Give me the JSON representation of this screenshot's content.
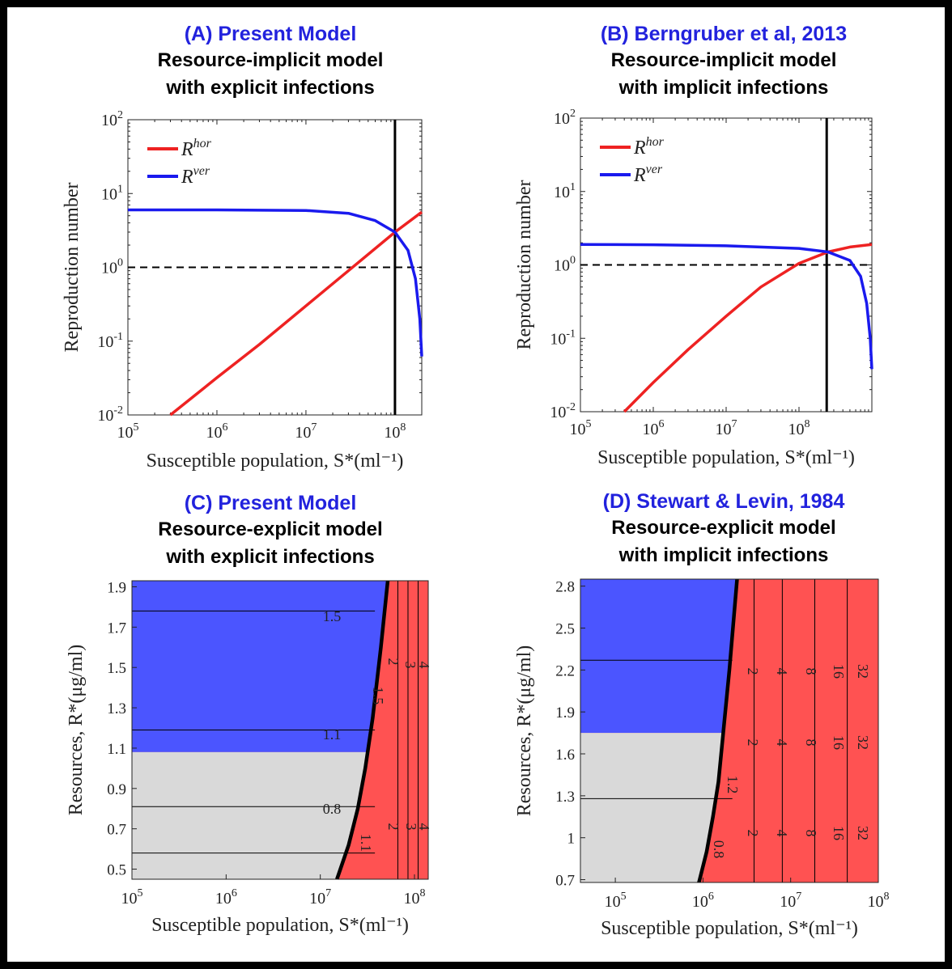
{
  "panels": {
    "A": {
      "title": "(A) Present Model",
      "line1": "Resource-implicit model",
      "line2": "with explicit infections"
    },
    "B": {
      "title": "(B) Berngruber et al, 2013",
      "line1": "Resource-implicit model",
      "line2": "with implicit infections"
    },
    "C": {
      "title": "(C) Present Model",
      "line1": "Resource-explicit model",
      "line2": "with explicit infections"
    },
    "D": {
      "title": "(D) Stewart & Levin, 1984",
      "line1": "Resource-explicit model",
      "line2": "with implicit infections"
    }
  },
  "colors": {
    "title_blue": "#2222dd",
    "hor_red": "#ee2222",
    "ver_blue": "#1a1aee",
    "region_blue": "#4b55ff",
    "region_gray": "#d9d9d9",
    "region_red": "#ff5252"
  },
  "chart_data": [
    {
      "id": "A",
      "type": "line",
      "xlabel": "Susceptible population, S*(ml⁻¹)",
      "ylabel": "Reproduction number",
      "x_scale": "log",
      "y_scale": "log",
      "xlim": [
        100000,
        200000000
      ],
      "ylim": [
        0.01,
        100
      ],
      "x_ticks": [
        "10^5",
        "10^6",
        "10^7",
        "10^8"
      ],
      "y_ticks": [
        "10^-2",
        "10^-1",
        "10^0",
        "10^1",
        "10^2"
      ],
      "legend": [
        "R^hor",
        "R^ver"
      ],
      "legend_position": "top-left",
      "series": [
        {
          "name": "R^hor",
          "color": "#ee2222",
          "x": [
            300000,
            1000000,
            3000000,
            10000000,
            30000000,
            100000000,
            200000000
          ],
          "y": [
            0.01,
            0.032,
            0.09,
            0.3,
            0.9,
            3.0,
            5.6
          ]
        },
        {
          "name": "R^ver",
          "color": "#1a1aee",
          "x": [
            100000,
            1000000,
            10000000,
            30000000,
            60000000,
            100000000,
            140000000,
            170000000,
            190000000,
            200000000
          ],
          "y": [
            6.0,
            6.0,
            5.9,
            5.4,
            4.3,
            3.0,
            1.7,
            0.7,
            0.2,
            0.062
          ]
        }
      ],
      "reference_lines": {
        "horizontal": 1,
        "vertical": 100000000
      }
    },
    {
      "id": "B",
      "type": "line",
      "xlabel": "Susceptible population, S*(ml⁻¹)",
      "ylabel": "Reproduction number",
      "x_scale": "log",
      "y_scale": "log",
      "xlim": [
        100000,
        1000000000
      ],
      "ylim": [
        0.01,
        100
      ],
      "x_ticks": [
        "10^5",
        "10^6",
        "10^7",
        "10^8"
      ],
      "y_ticks": [
        "10^-2",
        "10^-1",
        "10^0",
        "10^1",
        "10^2"
      ],
      "legend": [
        "R^hor",
        "R^ver"
      ],
      "legend_position": "top-left",
      "series": [
        {
          "name": "R^hor",
          "color": "#ee2222",
          "x": [
            400000,
            1000000,
            3000000,
            10000000,
            30000000,
            100000000,
            250000000,
            500000000,
            1000000000
          ],
          "y": [
            0.01,
            0.025,
            0.07,
            0.2,
            0.5,
            1.05,
            1.5,
            1.75,
            1.9
          ]
        },
        {
          "name": "R^ver",
          "color": "#1a1aee",
          "x": [
            100000,
            1000000,
            10000000,
            100000000,
            250000000,
            500000000,
            700000000,
            850000000,
            950000000,
            1000000000
          ],
          "y": [
            1.9,
            1.88,
            1.82,
            1.68,
            1.5,
            1.15,
            0.7,
            0.3,
            0.1,
            0.038
          ]
        }
      ],
      "reference_lines": {
        "horizontal": 1,
        "vertical": 240000000
      }
    },
    {
      "id": "C",
      "type": "heatmap",
      "xlabel": "Susceptible population, S*(ml⁻¹)",
      "ylabel": "Resources, R*(μg/ml)",
      "x_scale": "log",
      "xlim": [
        100000,
        140000000
      ],
      "ylim": [
        0.45,
        1.93
      ],
      "x_ticks": [
        "10^5",
        "10^6",
        "10^7",
        "10^8"
      ],
      "y_ticks": [
        0.5,
        0.7,
        0.9,
        1.1,
        1.3,
        1.5,
        1.7,
        1.9
      ],
      "regions": {
        "blue": "R > 1.08, left of boundary",
        "gray": "R < 1.08, left of boundary",
        "red": "right of boundary"
      },
      "boundary": {
        "x": [
          15000000,
          20000000,
          25000000,
          30000000,
          36000000,
          44000000,
          52000000
        ],
        "y": [
          0.45,
          0.62,
          0.8,
          1.0,
          1.25,
          1.6,
          1.93
        ]
      },
      "contour_labels": [
        "1.5",
        "1.1",
        "0.8",
        "2",
        "3",
        "4",
        "1.5",
        "1.1",
        "2",
        "3",
        "4"
      ]
    },
    {
      "id": "D",
      "type": "heatmap",
      "xlabel": "Susceptible population, S*(ml⁻¹)",
      "ylabel": "Resources, R*(μg/ml)",
      "x_scale": "log",
      "xlim": [
        40000,
        100000000
      ],
      "ylim": [
        0.68,
        2.85
      ],
      "x_ticks": [
        "10^5",
        "10^6",
        "10^7",
        "10^8"
      ],
      "y_ticks": [
        0.7,
        1,
        1.3,
        1.6,
        1.9,
        2.2,
        2.5,
        2.8
      ],
      "regions": {
        "blue": "R > 1.75, left of boundary",
        "gray": "R < 1.75, left of boundary",
        "red": "right of boundary"
      },
      "boundary": {
        "x": [
          900000,
          1100000,
          1300000,
          1500000,
          1700000,
          2000000,
          2450000
        ],
        "y": [
          0.68,
          0.9,
          1.15,
          1.4,
          1.75,
          2.2,
          2.85
        ]
      },
      "contour_labels": [
        "2",
        "4",
        "8",
        "16",
        "32",
        "2",
        "4",
        "8",
        "16",
        "32",
        "2",
        "4",
        "8",
        "16",
        "32",
        "1.2",
        "0.8"
      ]
    }
  ]
}
